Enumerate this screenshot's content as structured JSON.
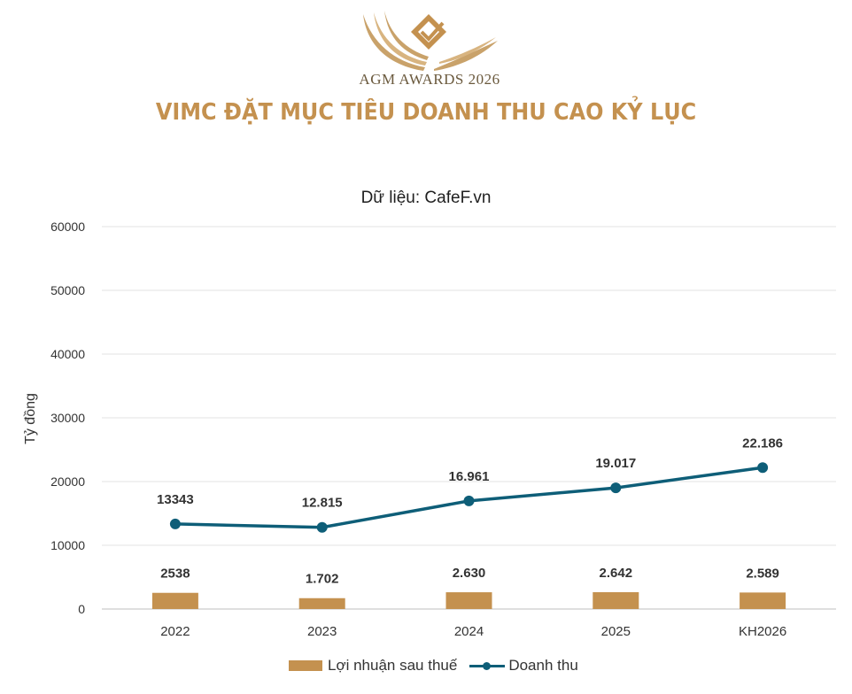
{
  "logo": {
    "icon": "agm-awards-logo",
    "text": "AGM AWARDS 2026",
    "color": "#c4914f"
  },
  "headline": "VIMC ĐẶT  MỤC TIÊU DOANH THU CAO KỶ LỤC",
  "chart_data": {
    "type": "bar",
    "title": "Dữ liệu: CafeF.vn",
    "ylabel": "Tỷ đồng",
    "xlabel": "",
    "ylim": [
      0,
      60000
    ],
    "yticks": [
      0,
      10000,
      20000,
      30000,
      40000,
      50000,
      60000
    ],
    "ytick_labels": [
      "0",
      "10000",
      "20000",
      "30000",
      "40000",
      "50000",
      "60000"
    ],
    "grid": true,
    "legend_position": "bottom",
    "categories": [
      "2022",
      "2023",
      "2024",
      "2025",
      "KH2026"
    ],
    "series": [
      {
        "name": "Lợi nhuận sau thuế",
        "type": "bar",
        "color": "#c4914f",
        "values": [
          2538,
          1702,
          2630,
          2642,
          2589
        ],
        "labels": [
          "2538",
          "1.702",
          "2.630",
          "2.642",
          "2.589"
        ]
      },
      {
        "name": "Doanh thu",
        "type": "line",
        "color": "#0e5e78",
        "values": [
          13343,
          12815,
          16961,
          19017,
          22186
        ],
        "labels": [
          "13343",
          "12.815",
          "16.961",
          "19.017",
          "22.186"
        ]
      }
    ]
  }
}
